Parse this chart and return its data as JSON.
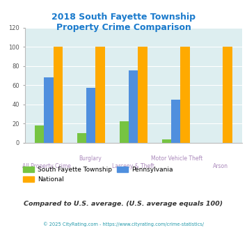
{
  "title": "2018 South Fayette Township\nProperty Crime Comparison",
  "categories": [
    "All Property Crime",
    "Burglary",
    "Larceny & Theft",
    "Motor Vehicle Theft",
    "Arson"
  ],
  "xtick_line1": [
    "",
    "Burglary",
    "",
    "Motor Vehicle Theft",
    ""
  ],
  "xtick_line2": [
    "All Property Crime",
    "",
    "Larceny & Theft",
    "",
    "Arson"
  ],
  "south_fayette": [
    18,
    10,
    22,
    3,
    0
  ],
  "pennsylvania": [
    68,
    57,
    75,
    45,
    0
  ],
  "national": [
    100,
    100,
    100,
    100,
    100
  ],
  "colors": {
    "south_fayette": "#76c442",
    "pennsylvania": "#4f8fde",
    "national": "#ffaa00"
  },
  "ylim": [
    0,
    120
  ],
  "yticks": [
    0,
    20,
    40,
    60,
    80,
    100,
    120
  ],
  "background_color": "#ddeef0",
  "title_color": "#1a7acc",
  "xlabel_color": "#aa88bb",
  "note": "Compared to U.S. average. (U.S. average equals 100)",
  "note_color": "#333333",
  "footer": "© 2025 CityRating.com - https://www.cityrating.com/crime-statistics/",
  "footer_color": "#2299aa"
}
